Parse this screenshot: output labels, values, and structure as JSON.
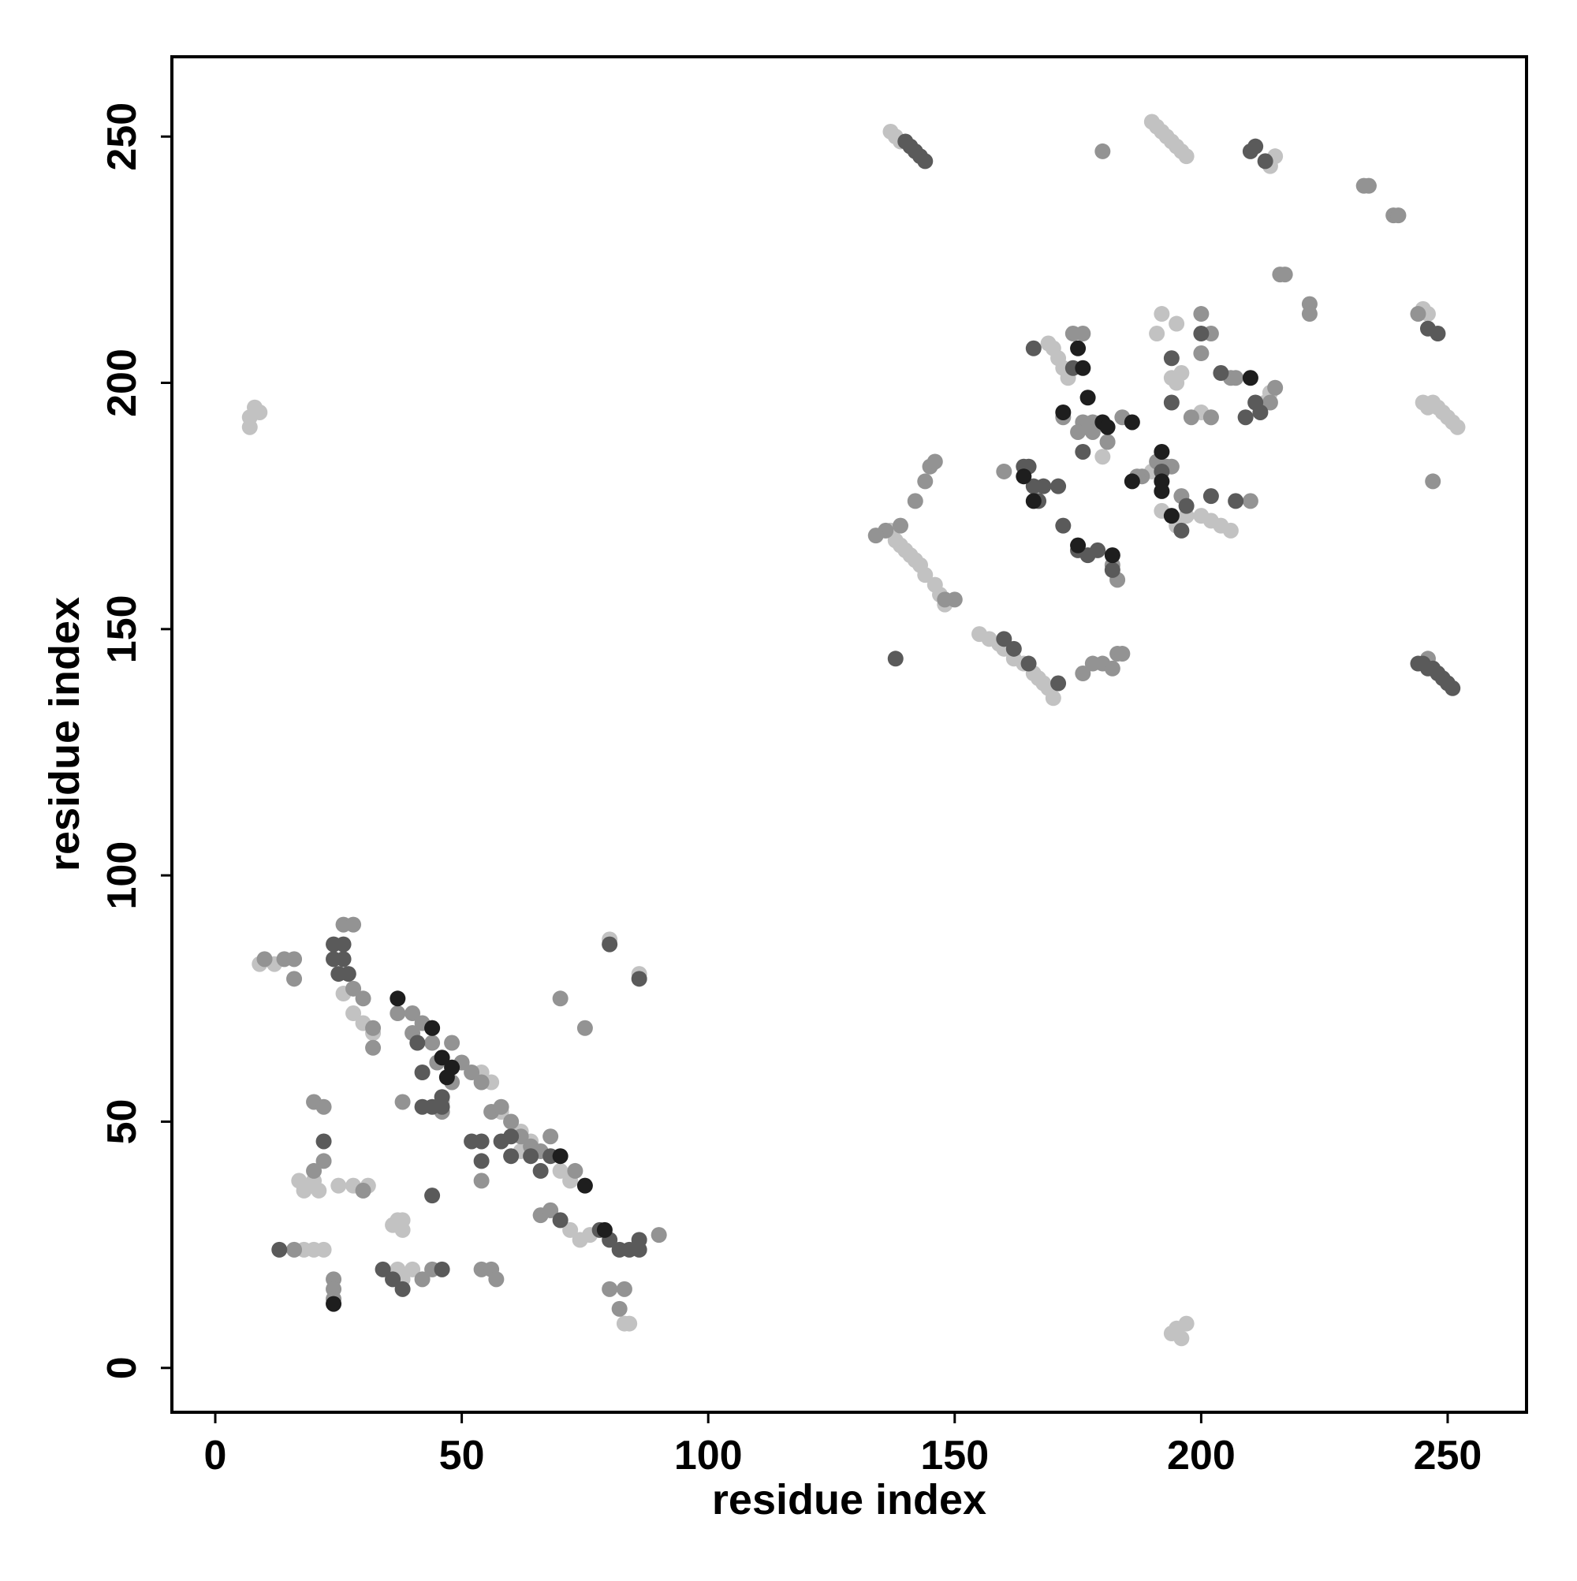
{
  "chart_data": {
    "type": "scatter",
    "xlabel": "residue index",
    "ylabel": "residue index",
    "xlim": [
      -8.8,
      266
    ],
    "ylim": [
      -9,
      266.2
    ],
    "xticks": [
      0,
      50,
      100,
      150,
      200,
      250
    ],
    "yticks": [
      0,
      50,
      100,
      150,
      200,
      250
    ],
    "series": [
      {
        "color": "#c2c2c2",
        "x": [
          7,
          8,
          9,
          7,
          9,
          12,
          26,
          28,
          30,
          32,
          17,
          18,
          20,
          21,
          36,
          37,
          38,
          37,
          38,
          40,
          25,
          28,
          30,
          31,
          38,
          46,
          54,
          56,
          58,
          60,
          62,
          64,
          70,
          72,
          68,
          70,
          72,
          74,
          76,
          83,
          84,
          194,
          195,
          196,
          197,
          80,
          86,
          62,
          18,
          20,
          22,
          137,
          138,
          139,
          190,
          191,
          192,
          193,
          194,
          195,
          196,
          197,
          138,
          139,
          140,
          141,
          142,
          143,
          144,
          146,
          147,
          148,
          155,
          157,
          159,
          160,
          162,
          164,
          166,
          167,
          168,
          169,
          170,
          245,
          246,
          247,
          248,
          249,
          250,
          251,
          252,
          169,
          170,
          171,
          172,
          173,
          180,
          181,
          190,
          192,
          195,
          197,
          200,
          202,
          204,
          206,
          194,
          195,
          196,
          191,
          192,
          195,
          213,
          214,
          200,
          202,
          215,
          214,
          245,
          246,
          137
        ],
        "y": [
          193,
          195,
          194,
          191,
          82,
          82,
          76,
          72,
          70,
          68,
          38,
          36,
          38,
          36,
          29,
          30,
          28,
          20,
          18,
          20,
          37,
          37,
          36,
          37,
          30,
          54,
          60,
          58,
          52,
          50,
          48,
          46,
          40,
          38,
          32,
          30,
          28,
          26,
          27,
          9,
          9,
          7,
          8,
          6,
          9,
          87,
          80,
          44,
          24,
          24,
          24,
          251,
          250,
          249,
          253,
          252,
          251,
          250,
          249,
          248,
          247,
          246,
          168,
          167,
          166,
          165,
          164,
          163,
          161,
          159,
          157,
          155,
          149,
          148,
          147,
          146,
          144,
          143,
          141,
          140,
          139,
          138,
          136,
          196,
          195,
          196,
          195,
          194,
          193,
          192,
          191,
          208,
          207,
          205,
          203,
          201,
          185,
          188,
          182,
          174,
          171,
          173,
          173,
          172,
          171,
          170,
          201,
          200,
          202,
          210,
          214,
          212,
          196,
          198,
          194,
          193,
          246,
          244,
          215,
          214,
          170
        ]
      },
      {
        "color": "#939393",
        "x": [
          10,
          14,
          16,
          16,
          16,
          24,
          24,
          24,
          22,
          20,
          20,
          22,
          26,
          28,
          28,
          30,
          32,
          32,
          37,
          38,
          40,
          42,
          44,
          45,
          48,
          48,
          50,
          52,
          54,
          56,
          58,
          60,
          62,
          64,
          66,
          68,
          70,
          75,
          73,
          66,
          68,
          80,
          82,
          83,
          90,
          54,
          54,
          56,
          57,
          42,
          44,
          40,
          46,
          30,
          136,
          134,
          145,
          146,
          144,
          142,
          139,
          150,
          148,
          180,
          196,
          194,
          193,
          191,
          188,
          187,
          183,
          182,
          178,
          178,
          176,
          175,
          172,
          174,
          176,
          181,
          184,
          160,
          200,
          202,
          200,
          198,
          202,
          210,
          214,
          215,
          216,
          217,
          222,
          222,
          233,
          234,
          239,
          240,
          244,
          247,
          176,
          178,
          180,
          183,
          184,
          182,
          206,
          207,
          246
        ],
        "y": [
          83,
          83,
          79,
          83,
          24,
          18,
          16,
          14,
          42,
          40,
          54,
          53,
          90,
          90,
          77,
          75,
          69,
          65,
          72,
          54,
          72,
          70,
          66,
          62,
          66,
          58,
          62,
          60,
          58,
          52,
          53,
          50,
          47,
          45,
          44,
          47,
          75,
          69,
          40,
          31,
          32,
          16,
          12,
          16,
          27,
          38,
          20,
          20,
          18,
          18,
          20,
          68,
          52,
          36,
          170,
          169,
          183,
          184,
          180,
          176,
          171,
          156,
          156,
          247,
          177,
          183,
          183,
          184,
          181,
          181,
          160,
          163,
          192,
          190,
          192,
          190,
          193,
          210,
          210,
          188,
          193,
          182,
          214,
          210,
          206,
          193,
          193,
          176,
          196,
          199,
          222,
          222,
          216,
          214,
          240,
          240,
          234,
          234,
          214,
          180,
          141,
          143,
          143,
          145,
          145,
          142,
          201,
          201,
          144
        ]
      },
      {
        "color": "#5a5a5a",
        "x": [
          24,
          24,
          26,
          26,
          25,
          27,
          41,
          42,
          42,
          44,
          44,
          46,
          46,
          52,
          54,
          54,
          58,
          60,
          60,
          66,
          64,
          68,
          70,
          78,
          80,
          82,
          84,
          86,
          86,
          22,
          13,
          44,
          36,
          34,
          38,
          46,
          196,
          80,
          86,
          140,
          141,
          142,
          143,
          144,
          138,
          210,
          211,
          213,
          244,
          245,
          246,
          247,
          248,
          249,
          250,
          251,
          171,
          164,
          165,
          166,
          167,
          168,
          166,
          175,
          177,
          179,
          182,
          176,
          172,
          174,
          192,
          194,
          194,
          200,
          212,
          209,
          204,
          202,
          211,
          246,
          248,
          171,
          160,
          162,
          165,
          207,
          197
        ],
        "y": [
          86,
          83,
          86,
          83,
          80,
          80,
          66,
          60,
          53,
          53,
          69,
          55,
          53,
          46,
          46,
          42,
          46,
          47,
          43,
          40,
          43,
          43,
          30,
          28,
          26,
          24,
          24,
          26,
          24,
          46,
          24,
          35,
          18,
          20,
          16,
          20,
          170,
          86,
          79,
          249,
          248,
          247,
          246,
          245,
          144,
          247,
          248,
          245,
          143,
          143,
          142,
          142,
          141,
          140,
          139,
          138,
          139,
          183,
          183,
          179,
          176,
          179,
          207,
          166,
          165,
          166,
          162,
          186,
          171,
          203,
          182,
          196,
          205,
          210,
          194,
          193,
          202,
          177,
          196,
          211,
          210,
          179,
          148,
          146,
          143,
          176,
          175
        ]
      },
      {
        "color": "#1e1e1e",
        "x": [
          37,
          44,
          46,
          48,
          47,
          70,
          75,
          79,
          24,
          172,
          180,
          181,
          175,
          175,
          176,
          182,
          186,
          186,
          192,
          192,
          194,
          164,
          166,
          177,
          210,
          192
        ],
        "y": [
          75,
          69,
          63,
          61,
          59,
          43,
          37,
          28,
          13,
          194,
          192,
          191,
          167,
          207,
          203,
          165,
          192,
          180,
          186,
          180,
          173,
          181,
          176,
          197,
          201,
          178
        ]
      }
    ]
  }
}
